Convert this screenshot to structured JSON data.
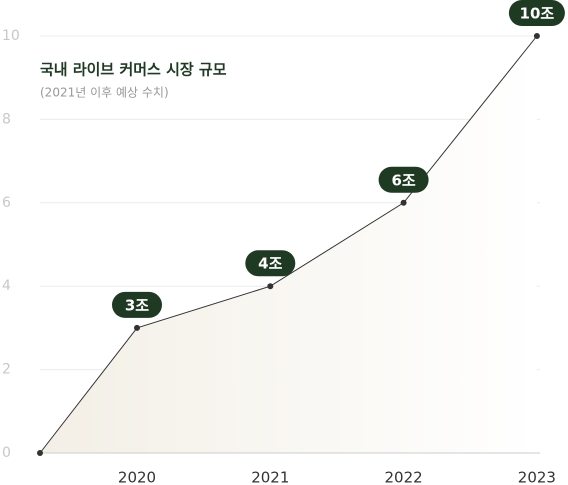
{
  "chart_data": {
    "type": "line",
    "title": "국내 라이브 커머스 시장 규모",
    "subtitle": "(2021년 이후 예상 수치)",
    "categories": [
      null,
      "2020",
      "2021",
      "2022",
      "2023"
    ],
    "values": [
      0,
      3,
      4,
      6,
      10
    ],
    "value_labels": [
      null,
      "3조",
      "4조",
      "6조",
      "10조"
    ],
    "color": "#333333",
    "label_color": "#1e3a22",
    "ylim": [
      0,
      10
    ],
    "yticks": [
      0,
      2,
      4,
      6,
      8,
      10
    ],
    "grid": true
  }
}
